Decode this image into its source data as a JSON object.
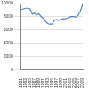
{
  "chart_data": {
    "type": "line",
    "categories": [
      "1981",
      null,
      "1983",
      null,
      "1985",
      null,
      "1987",
      null,
      "1989",
      null,
      "1991",
      null,
      "1993",
      null,
      "1995",
      null,
      "1997",
      null,
      "1999",
      null,
      "2001",
      null,
      "2003",
      null,
      "2005",
      null,
      "2007",
      null,
      "2009"
    ],
    "values": [
      9100,
      9200,
      9300,
      9300,
      9200,
      8400,
      8600,
      8300,
      8500,
      8050,
      7800,
      7350,
      7000,
      6900,
      6900,
      7450,
      7600,
      7450,
      7600,
      7700,
      7700,
      7800,
      7950,
      8050,
      8050,
      7950,
      8300,
      8950,
      9900
    ],
    "color": "#4f81bd",
    "ylim": [
      0,
      10000
    ],
    "yticks": [
      0,
      2000,
      4000,
      6000,
      8000,
      10000
    ],
    "grid": true
  }
}
